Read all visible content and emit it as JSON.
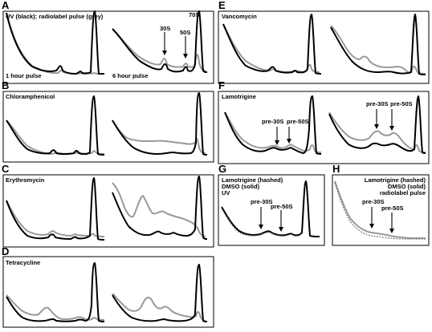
{
  "colors": {
    "uv_trace": "#000000",
    "radiolabel_trace": "#999999",
    "panel_border": "#000000"
  },
  "panels": [
    {
      "letter": "A",
      "title": "UV (black); radiolabel pulse (grey)",
      "notes": [
        "1 hour pulse",
        "6 hour pulse"
      ],
      "markers": [
        "30S",
        "50S",
        "70S"
      ]
    },
    {
      "letter": "B",
      "title": "Chloramphenicol"
    },
    {
      "letter": "C",
      "title": "Erythromycin"
    },
    {
      "letter": "D",
      "title": "Tetracycline"
    },
    {
      "letter": "E",
      "title": "Vancomycin"
    },
    {
      "letter": "F",
      "title": "Lamotrigine",
      "markers": [
        "pre-30S",
        "pre-50S"
      ]
    },
    {
      "letter": "G",
      "title_lines": [
        "Lamotrigine (hashed)",
        "DMSO (solid)",
        "UV"
      ],
      "markers": [
        "pre-30S",
        "pre-50S"
      ]
    },
    {
      "letter": "H",
      "title_lines": [
        "Lamotrigine (hashed)",
        "DMSO (solid)",
        "radiolabel pulse"
      ],
      "markers": [
        "pre-30S",
        "pre-50S"
      ]
    }
  ]
}
